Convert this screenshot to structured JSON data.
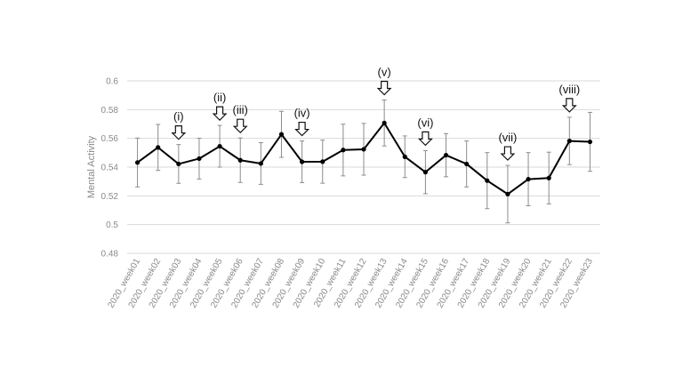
{
  "chart_data": {
    "type": "line",
    "title": "",
    "xlabel": "",
    "ylabel": "Mental Activity",
    "ylim": [
      0.48,
      0.6
    ],
    "yticks": [
      "0.48",
      "0.5",
      "0.52",
      "0.54",
      "0.56",
      "0.58",
      "0.6"
    ],
    "grid": "horizontal",
    "categories": [
      "2020_week01",
      "2020_week02",
      "2020_week03",
      "2020_week04",
      "2020_week05",
      "2020_week06",
      "2020_week07",
      "2020_week08",
      "2020_week09",
      "2020_week10",
      "2020_week11",
      "2020_week12",
      "2020_week13",
      "2020_week14",
      "2020_week15",
      "2020_week16",
      "2020_week17",
      "2020_week18",
      "2020_week19",
      "2020_week20",
      "2020_week21",
      "2020_week22",
      "2020_week23"
    ],
    "series": [
      {
        "values": [
          0.5432,
          0.5537,
          0.5422,
          0.5459,
          0.5545,
          0.5448,
          0.5425,
          0.5628,
          0.5437,
          0.5438,
          0.5519,
          0.5524,
          0.5707,
          0.5472,
          0.5365,
          0.5483,
          0.5422,
          0.5306,
          0.5212,
          0.5316,
          0.5324,
          0.5582,
          0.5576
        ],
        "error": [
          0.017,
          0.016,
          0.0135,
          0.0142,
          0.0145,
          0.0155,
          0.0145,
          0.016,
          0.0145,
          0.015,
          0.018,
          0.018,
          0.016,
          0.0145,
          0.015,
          0.015,
          0.016,
          0.0195,
          0.02,
          0.0185,
          0.018,
          0.0165,
          0.0205
        ],
        "color": "#000000"
      }
    ],
    "annotations": [
      {
        "label": "(i)",
        "index": 2
      },
      {
        "label": "(ii)",
        "index": 4
      },
      {
        "label": "(iii)",
        "index": 5
      },
      {
        "label": "(iv)",
        "index": 8
      },
      {
        "label": "(v)",
        "index": 12
      },
      {
        "label": "(vi)",
        "index": 14
      },
      {
        "label": "(vii)",
        "index": 18
      },
      {
        "label": "(viii)",
        "index": 21
      }
    ]
  }
}
